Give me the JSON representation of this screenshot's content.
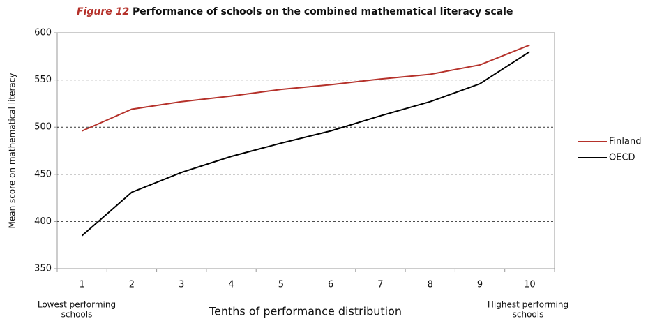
{
  "chart_data": {
    "type": "line",
    "figure_label": "Figure 12",
    "title": "Performance of schools on the combined mathematical literacy scale",
    "y_label": "Mean score on mathematical literacy",
    "x_label": "Tenths of performance distribution",
    "annotations": [
      [
        "Lowest performing",
        "schools"
      ],
      [
        "Highest performing",
        "schools"
      ]
    ],
    "categories": [
      "1",
      "2",
      "3",
      "4",
      "5",
      "6",
      "7",
      "8",
      "9",
      "10"
    ],
    "series": [
      {
        "name": "Finland",
        "color": "#b5312a",
        "values": [
          496,
          519,
          527,
          533,
          540,
          545,
          551,
          556,
          566,
          587
        ]
      },
      {
        "name": "OECD",
        "color": "#000000",
        "values": [
          385,
          431,
          452,
          469,
          483,
          496,
          512,
          527,
          546,
          580
        ]
      }
    ],
    "ylim": [
      350,
      600
    ],
    "yticks": [
      350,
      400,
      450,
      500,
      550,
      600
    ],
    "grid": true,
    "legend": "right"
  }
}
